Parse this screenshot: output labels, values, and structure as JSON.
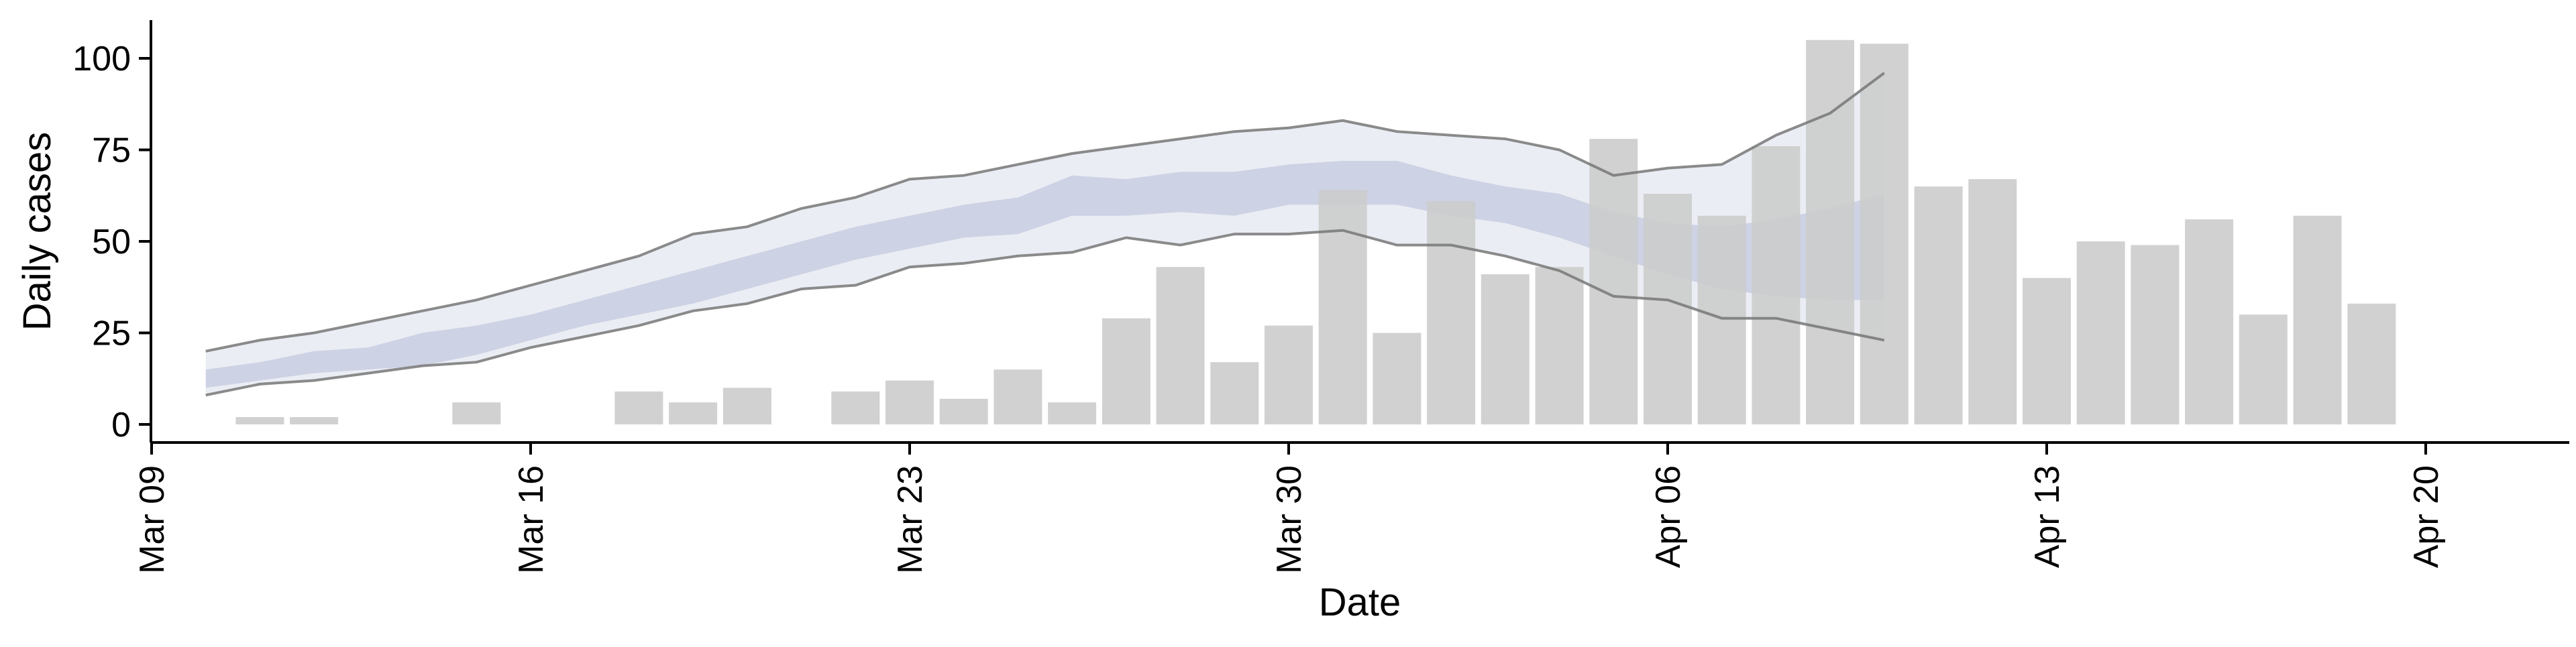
{
  "chart_data": {
    "type": "bar",
    "xlabel": "Date",
    "ylabel": "Daily cases",
    "x_start": "2020-03-08",
    "x_ticks": [
      {
        "date": "2020-03-09",
        "label": "Mar 09"
      },
      {
        "date": "2020-03-16",
        "label": "Mar 16"
      },
      {
        "date": "2020-03-23",
        "label": "Mar 23"
      },
      {
        "date": "2020-03-30",
        "label": "Mar 30"
      },
      {
        "date": "2020-04-06",
        "label": "Apr 06"
      },
      {
        "date": "2020-04-13",
        "label": "Apr 13"
      },
      {
        "date": "2020-04-20",
        "label": "Apr 20"
      }
    ],
    "y_ticks": [
      0,
      25,
      50,
      75,
      100
    ],
    "xlim": [
      "2020-03-08",
      "2020-04-21"
    ],
    "ylim": [
      -5,
      110
    ],
    "grid": false,
    "colors": {
      "bars": "#cccccc",
      "outer_band": "#e8eaf2",
      "inner_band": "#c8cde0",
      "bound_lines": "#777777",
      "axis": "#000000"
    },
    "bars": {
      "name": "Daily cases",
      "x": [
        "2020-03-11",
        "2020-03-12",
        "2020-03-15",
        "2020-03-18",
        "2020-03-19",
        "2020-03-20",
        "2020-03-22",
        "2020-03-23",
        "2020-03-24",
        "2020-03-25",
        "2020-03-26",
        "2020-03-27",
        "2020-03-28",
        "2020-03-29",
        "2020-03-30",
        "2020-03-31",
        "2020-04-01",
        "2020-04-02",
        "2020-04-03",
        "2020-04-04",
        "2020-04-05",
        "2020-04-06",
        "2020-04-07",
        "2020-04-08",
        "2020-04-09",
        "2020-04-10",
        "2020-04-11",
        "2020-04-12",
        "2020-04-13",
        "2020-04-14",
        "2020-04-15",
        "2020-04-16",
        "2020-04-17",
        "2020-04-18",
        "2020-04-19"
      ],
      "values": [
        2,
        2,
        6,
        9,
        6,
        10,
        9,
        12,
        7,
        15,
        6,
        29,
        43,
        17,
        27,
        64,
        25,
        61,
        41,
        43,
        78,
        63,
        57,
        76,
        105,
        104,
        65,
        67,
        40,
        50,
        49,
        56,
        30,
        57,
        33
      ]
    },
    "nowcast": {
      "x": [
        "2020-03-10",
        "2020-03-11",
        "2020-03-12",
        "2020-03-13",
        "2020-03-14",
        "2020-03-15",
        "2020-03-16",
        "2020-03-17",
        "2020-03-18",
        "2020-03-19",
        "2020-03-20",
        "2020-03-21",
        "2020-03-22",
        "2020-03-23",
        "2020-03-24",
        "2020-03-25",
        "2020-03-26",
        "2020-03-27",
        "2020-03-28",
        "2020-03-29",
        "2020-03-30",
        "2020-03-31",
        "2020-04-01",
        "2020-04-02",
        "2020-04-03",
        "2020-04-04",
        "2020-04-05",
        "2020-04-06",
        "2020-04-07",
        "2020-04-08",
        "2020-04-09",
        "2020-04-10"
      ],
      "upper": [
        20,
        23,
        25,
        28,
        31,
        34,
        38,
        42,
        46,
        52,
        54,
        59,
        62,
        67,
        68,
        71,
        74,
        76,
        78,
        80,
        81,
        83,
        80,
        79,
        78,
        75,
        68,
        70,
        71,
        79,
        85,
        96
      ],
      "lower": [
        8,
        11,
        12,
        14,
        16,
        17,
        21,
        24,
        27,
        31,
        33,
        37,
        38,
        43,
        44,
        46,
        47,
        51,
        49,
        52,
        52,
        53,
        49,
        49,
        46,
        42,
        35,
        34,
        29,
        29,
        26,
        23
      ],
      "inner_upper": [
        15,
        17,
        20,
        21,
        25,
        27,
        30,
        34,
        38,
        42,
        46,
        50,
        54,
        57,
        60,
        62,
        68,
        67,
        69,
        69,
        71,
        72,
        72,
        68,
        65,
        63,
        58,
        55,
        54,
        56,
        59,
        63
      ],
      "inner_lower": [
        10,
        12,
        14,
        15,
        16,
        19,
        23,
        27,
        30,
        33,
        37,
        41,
        45,
        48,
        51,
        52,
        57,
        57,
        58,
        57,
        60,
        60,
        60,
        57,
        55,
        51,
        46,
        41,
        37,
        35,
        34,
        34
      ]
    }
  }
}
